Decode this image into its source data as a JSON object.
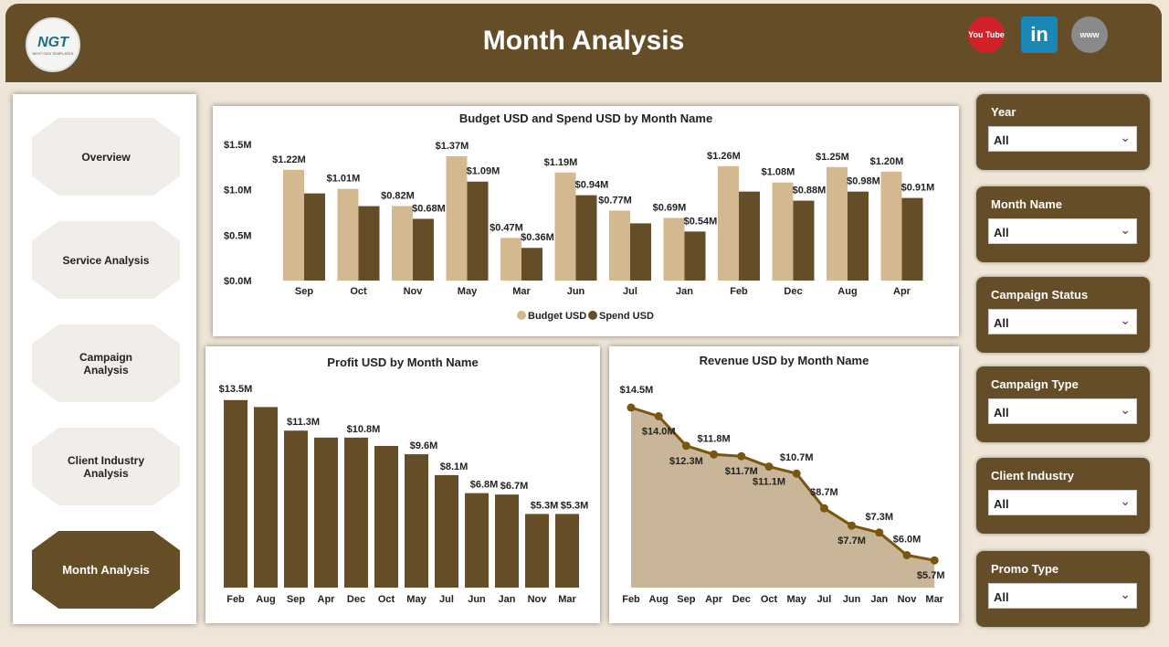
{
  "header": {
    "title": "Month Analysis",
    "logo_text": "NGT",
    "logo_sub": "NEXT GEN TEMPLATES",
    "social": [
      {
        "icon": "youtube-icon",
        "label": "You Tube",
        "color": "#d42027"
      },
      {
        "icon": "linkedin-icon",
        "label": "in",
        "color": "#1b87b6"
      },
      {
        "icon": "globe-icon",
        "label": "www",
        "color": "#8a8a8a"
      }
    ]
  },
  "nav": {
    "items": [
      {
        "label": "Overview"
      },
      {
        "label": "Service Analysis"
      },
      {
        "label": "Campaign Analysis"
      },
      {
        "label": "Client Industry Analysis"
      },
      {
        "label": "Month Analysis",
        "active": true
      }
    ]
  },
  "slicers": [
    {
      "label": "Year",
      "value": "All"
    },
    {
      "label": "Month Name",
      "value": "All"
    },
    {
      "label": "Campaign Status",
      "value": "All"
    },
    {
      "label": "Campaign Type",
      "value": "All"
    },
    {
      "label": "Client Industry",
      "value": "All"
    },
    {
      "label": "Promo Type",
      "value": "All"
    }
  ],
  "colors": {
    "brand": "#654d28",
    "budget": "#d4b88f",
    "spend": "#654d28",
    "area": "#c9b597",
    "line": "#7a5510"
  },
  "chart_data": [
    {
      "type": "bar",
      "title": "Budget USD and Spend USD by Month Name",
      "categories": [
        "Sep",
        "Oct",
        "Nov",
        "May",
        "Mar",
        "Jun",
        "Jul",
        "Jan",
        "Feb",
        "Dec",
        "Aug",
        "Apr"
      ],
      "series": [
        {
          "name": "Budget USD",
          "values": [
            1.22,
            1.01,
            0.82,
            1.37,
            0.47,
            1.19,
            0.77,
            0.69,
            1.26,
            1.08,
            1.25,
            1.2
          ],
          "labels": [
            "$1.22M",
            "$1.01M",
            "$0.82M",
            "$1.37M",
            "$0.47M",
            "$1.19M",
            "$0.77M",
            "$0.69M",
            "$1.26M",
            "$1.08M",
            "$1.25M",
            "$1.20M"
          ]
        },
        {
          "name": "Spend USD",
          "values": [
            0.96,
            0.82,
            0.68,
            1.09,
            0.36,
            0.94,
            0.63,
            0.54,
            0.98,
            0.88,
            0.98,
            0.91
          ],
          "labels": [
            "",
            "",
            "$0.68M",
            "$1.09M",
            "$0.36M",
            "$0.94M",
            "",
            "$0.54M",
            "",
            "$0.88M",
            "$0.98M",
            "$0.91M"
          ]
        }
      ],
      "yticks": [
        "$0.0M",
        "$0.5M",
        "$1.0M",
        "$1.5M"
      ],
      "ylim": [
        0,
        1.5
      ],
      "legend": "bottom"
    },
    {
      "type": "bar",
      "title": "Profit USD by Month Name",
      "categories": [
        "Feb",
        "Aug",
        "Sep",
        "Apr",
        "Dec",
        "Oct",
        "May",
        "Jul",
        "Jun",
        "Jan",
        "Nov",
        "Mar"
      ],
      "values": [
        13.5,
        13.0,
        11.3,
        10.8,
        10.8,
        10.2,
        9.6,
        8.1,
        6.8,
        6.7,
        5.3,
        5.3
      ],
      "labels": [
        "$13.5M",
        "",
        "$11.3M",
        "",
        "$10.8M",
        "",
        "$9.6M",
        "$8.1M",
        "$6.8M",
        "$6.7M",
        "$5.3M",
        "$5.3M"
      ]
    },
    {
      "type": "area",
      "title": "Revenue USD by Month Name",
      "categories": [
        "Feb",
        "Aug",
        "Sep",
        "Apr",
        "Dec",
        "Oct",
        "May",
        "Jul",
        "Jun",
        "Jan",
        "Nov",
        "Mar"
      ],
      "values": [
        14.5,
        14.0,
        12.3,
        11.8,
        11.7,
        11.1,
        10.7,
        8.7,
        7.7,
        7.3,
        6.0,
        5.7
      ],
      "labels": [
        "$14.5M",
        "$14.0M",
        "$12.3M",
        "$11.8M",
        "$11.7M",
        "$11.1M",
        "$10.7M",
        "$8.7M",
        "$7.7M",
        "$7.3M",
        "$6.0M",
        "$5.7M"
      ]
    }
  ]
}
